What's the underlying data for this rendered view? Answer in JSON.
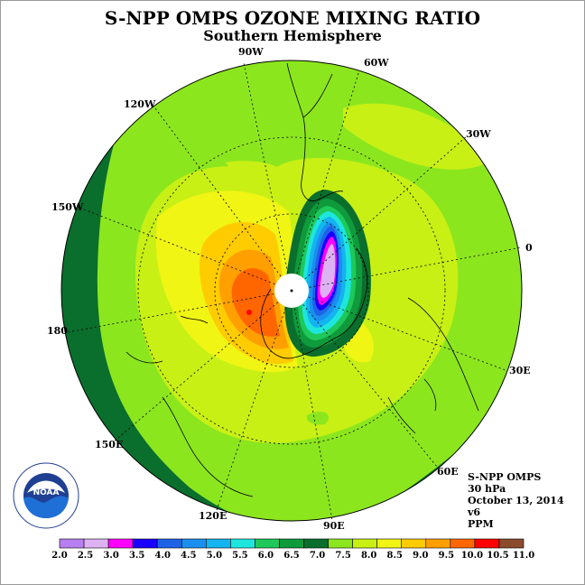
{
  "title": "S-NPP OMPS OZONE MIXING RATIO",
  "subtitle": "Southern Hemisphere",
  "meridian_labels": [
    "90W",
    "60W",
    "120W",
    "30W",
    "150W",
    "0",
    "180",
    "30E",
    "150E",
    "60E",
    "120E",
    "90E"
  ],
  "info": {
    "instrument": "S-NPP OMPS",
    "level": "30 hPa",
    "date": "October 13, 2014",
    "version": "v6",
    "units": "PPM"
  },
  "logo": {
    "text": "NOAA",
    "ring_text": "NATIONAL OCEANIC AND ATMOSPHERIC ADMINISTRATION · U.S. DEPARTMENT OF COMMERCE"
  },
  "colorbar": {
    "labels": [
      "2.0",
      "2.5",
      "3.0",
      "3.5",
      "4.0",
      "4.5",
      "5.0",
      "5.5",
      "6.0",
      "6.5",
      "7.0",
      "7.5",
      "8.0",
      "8.5",
      "9.0",
      "9.5",
      "10.0",
      "10.5",
      "11.0"
    ],
    "colors": [
      "#b77ff0",
      "#dcb2f2",
      "#ff00ff",
      "#1a00ff",
      "#1e63e6",
      "#1a8ff0",
      "#14b4f0",
      "#1ee6dc",
      "#1ec85a",
      "#0f9a3c",
      "#0a6e2c",
      "#8ce61e",
      "#c8f014",
      "#f0f514",
      "#ffcc00",
      "#ff9f00",
      "#ff6600",
      "#ff0000",
      "#8b4a2b"
    ]
  }
}
